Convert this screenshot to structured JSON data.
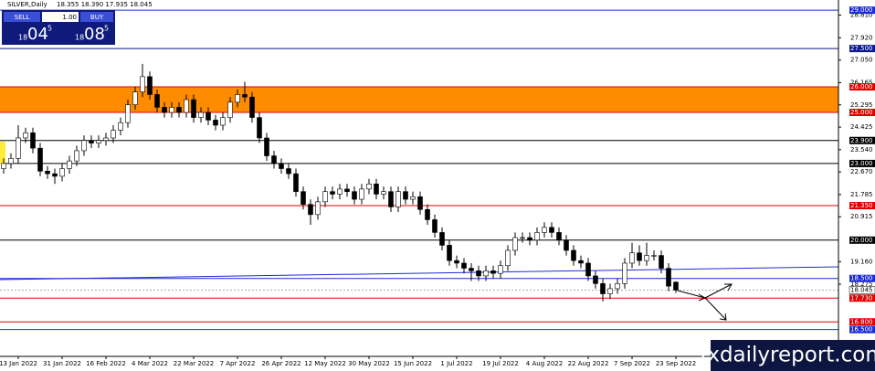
{
  "header": {
    "symbol": "SILVER,Daily",
    "quote": "18.355 18.390 17.935 18.045"
  },
  "trade_panel": {
    "sell": "SELL",
    "buy": "BUY",
    "lot": "1.00",
    "bid": [
      "18",
      "04",
      "5"
    ],
    "ask": [
      "18",
      "08",
      "5"
    ]
  },
  "watermark": "fxdailyreport.com",
  "chart_data": {
    "type": "candlestick",
    "up_color": "#ffffff",
    "down_color": "#000000",
    "ylim": [
      15.45,
      29.4
    ],
    "yticks": [
      {
        "value": 28.81,
        "label": "28.810"
      },
      {
        "value": 27.92,
        "label": "27.920"
      },
      {
        "value": 27.05,
        "label": "27.050"
      },
      {
        "value": 26.165,
        "label": "26.165"
      },
      {
        "value": 25.295,
        "label": "25.295"
      },
      {
        "value": 24.425,
        "label": "24.425"
      },
      {
        "value": 23.54,
        "label": "23.540"
      },
      {
        "value": 22.67,
        "label": "22.670"
      },
      {
        "value": 21.785,
        "label": "21.785"
      },
      {
        "value": 20.915,
        "label": "20.915"
      },
      {
        "value": 19.16,
        "label": "19.160"
      },
      {
        "value": 18.275,
        "label": "18.275"
      }
    ],
    "zones": [
      {
        "from": 25.0,
        "to": 26.0,
        "color": "#ff8c00"
      }
    ],
    "levels": [
      {
        "value": 29.0,
        "label": "29.000",
        "color": "#1d2bd6"
      },
      {
        "value": 27.5,
        "label": "27.500",
        "color": "#0a1a8c"
      },
      {
        "value": 26.0,
        "label": "26.000",
        "color": "#e00000"
      },
      {
        "value": 25.0,
        "label": "25.000",
        "color": "#e00000"
      },
      {
        "value": 23.9,
        "label": "23.900",
        "color": "#000000"
      },
      {
        "value": 23.0,
        "label": "23.000",
        "color": "#000000"
      },
      {
        "value": 21.35,
        "label": "21.350",
        "color": "#e00000"
      },
      {
        "value": 20.0,
        "label": "20.000",
        "color": "#000000"
      },
      {
        "value": 18.5,
        "label": "18.500",
        "color": "#1d2bd6"
      },
      {
        "value": 17.73,
        "label": "17.730",
        "color": "#e00000"
      },
      {
        "value": 16.8,
        "label": "16.800",
        "color": "#e00000"
      },
      {
        "value": 16.5,
        "label": "16.500",
        "color": "#1d2bd6"
      }
    ],
    "last": {
      "value": 18.045,
      "label": "18.045"
    },
    "categories": [
      null,
      null,
      "13 Jan 2022",
      null,
      null,
      null,
      null,
      null,
      "31 Jan 2022",
      null,
      null,
      null,
      null,
      null,
      "16 Feb 2022",
      null,
      null,
      null,
      null,
      null,
      "4 Mar 2022",
      null,
      null,
      null,
      null,
      null,
      "22 Mar 2022",
      null,
      null,
      null,
      null,
      null,
      "7 Apr 2022",
      null,
      null,
      null,
      null,
      null,
      "26 Apr 2022",
      null,
      null,
      null,
      null,
      null,
      "12 May 2022",
      null,
      null,
      null,
      null,
      null,
      "30 May 2022",
      null,
      null,
      null,
      null,
      null,
      "15 Jun 2022",
      null,
      null,
      null,
      null,
      null,
      "1 Jul 2022",
      null,
      null,
      null,
      null,
      null,
      "19 Jul 2022",
      null,
      null,
      null,
      null,
      null,
      "4 Aug 2022",
      null,
      null,
      null,
      null,
      null,
      "22 Aug 2022",
      null,
      null,
      null,
      null,
      null,
      "7 Sep 2022",
      null,
      null,
      null,
      null,
      null,
      "23 Sep 2022"
    ],
    "open": [
      22.8,
      23.0,
      23.2,
      24.0,
      24.2,
      23.6,
      22.7,
      22.6,
      22.5,
      22.8,
      23.1,
      23.5,
      23.9,
      23.8,
      23.9,
      24.0,
      24.3,
      24.6,
      25.3,
      25.8,
      26.4,
      25.7,
      25.2,
      25.0,
      25.2,
      25.0,
      25.5,
      24.8,
      25.0,
      24.7,
      24.5,
      24.8,
      25.4,
      25.7,
      25.6,
      24.8,
      24.0,
      23.3,
      23.0,
      22.8,
      22.6,
      21.9,
      21.4,
      21.0,
      21.5,
      21.9,
      21.8,
      22.0,
      21.9,
      21.6,
      22.0,
      22.2,
      21.8,
      21.9,
      21.3,
      21.9,
      21.6,
      21.7,
      21.2,
      20.8,
      20.3,
      19.8,
      19.2,
      19.1,
      18.9,
      18.8,
      18.6,
      18.8,
      18.7,
      19.0,
      19.6,
      20.1,
      20.1,
      20.0,
      20.3,
      20.5,
      20.3,
      20.0,
      19.6,
      19.2,
      19.1,
      18.6,
      18.3,
      17.9,
      18.1,
      18.3,
      19.1,
      19.5,
      19.2,
      19.4,
      19.4,
      18.9,
      18.355
    ],
    "high": [
      23.2,
      23.4,
      24.5,
      24.4,
      24.4,
      23.8,
      22.9,
      22.8,
      23.0,
      23.3,
      23.7,
      24.1,
      24.1,
      24.1,
      24.2,
      24.5,
      24.8,
      25.5,
      26.0,
      26.9,
      26.6,
      25.9,
      25.4,
      25.4,
      25.4,
      25.7,
      25.7,
      25.2,
      25.2,
      24.9,
      25.0,
      25.6,
      25.9,
      26.2,
      25.8,
      25.0,
      24.2,
      23.5,
      23.2,
      23.0,
      22.8,
      22.1,
      21.6,
      21.7,
      22.1,
      22.1,
      22.2,
      22.2,
      22.1,
      22.2,
      22.4,
      22.4,
      22.1,
      22.1,
      22.1,
      22.1,
      21.9,
      21.9,
      21.4,
      21.0,
      20.5,
      20.0,
      19.4,
      19.3,
      19.1,
      19.0,
      19.0,
      19.0,
      19.2,
      19.8,
      20.3,
      20.3,
      20.3,
      20.5,
      20.7,
      20.7,
      20.5,
      20.2,
      19.8,
      19.4,
      19.3,
      18.8,
      18.5,
      18.3,
      18.5,
      19.3,
      19.9,
      19.8,
      19.9,
      19.6,
      19.6,
      19.1,
      18.39
    ],
    "low": [
      22.6,
      22.8,
      23.0,
      23.8,
      23.4,
      22.5,
      22.4,
      22.2,
      22.3,
      22.6,
      22.9,
      23.3,
      23.6,
      23.6,
      23.7,
      23.8,
      24.1,
      24.4,
      25.1,
      25.6,
      25.5,
      25.0,
      24.8,
      24.8,
      24.8,
      24.8,
      24.6,
      24.6,
      24.5,
      24.3,
      24.3,
      24.6,
      25.2,
      25.4,
      24.6,
      23.8,
      23.1,
      22.8,
      22.6,
      22.4,
      21.7,
      21.2,
      20.6,
      20.8,
      21.3,
      21.6,
      21.6,
      21.7,
      21.4,
      21.4,
      21.8,
      21.6,
      21.6,
      21.1,
      21.1,
      21.4,
      21.4,
      21.0,
      20.6,
      20.1,
      19.6,
      19.0,
      18.9,
      18.7,
      18.4,
      18.4,
      18.4,
      18.5,
      18.5,
      18.8,
      19.4,
      19.9,
      19.8,
      19.8,
      20.1,
      20.1,
      19.8,
      19.4,
      19.0,
      18.9,
      18.4,
      18.1,
      17.6,
      17.7,
      17.9,
      18.1,
      18.9,
      19.0,
      19.0,
      19.2,
      18.7,
      18.0,
      17.935
    ],
    "close": [
      23.0,
      23.2,
      24.0,
      24.2,
      23.6,
      22.7,
      22.6,
      22.5,
      22.8,
      23.1,
      23.5,
      23.9,
      23.8,
      23.9,
      24.0,
      24.3,
      24.6,
      25.3,
      25.8,
      26.4,
      25.7,
      25.2,
      25.0,
      25.2,
      25.0,
      25.5,
      24.8,
      25.0,
      24.7,
      24.5,
      24.8,
      25.4,
      25.7,
      25.6,
      24.8,
      24.0,
      23.3,
      23.0,
      22.8,
      22.6,
      21.9,
      21.4,
      21.0,
      21.5,
      21.9,
      21.8,
      22.0,
      21.9,
      21.6,
      22.0,
      22.2,
      21.8,
      21.9,
      21.3,
      21.9,
      21.6,
      21.7,
      21.2,
      20.8,
      20.3,
      19.8,
      19.2,
      19.1,
      18.9,
      18.8,
      18.6,
      18.8,
      18.7,
      19.0,
      19.6,
      20.1,
      20.1,
      20.0,
      20.3,
      20.5,
      20.3,
      20.0,
      19.6,
      19.2,
      19.1,
      18.6,
      18.3,
      17.9,
      18.1,
      18.3,
      19.1,
      19.5,
      19.2,
      19.4,
      19.4,
      18.9,
      18.2,
      18.045
    ]
  }
}
